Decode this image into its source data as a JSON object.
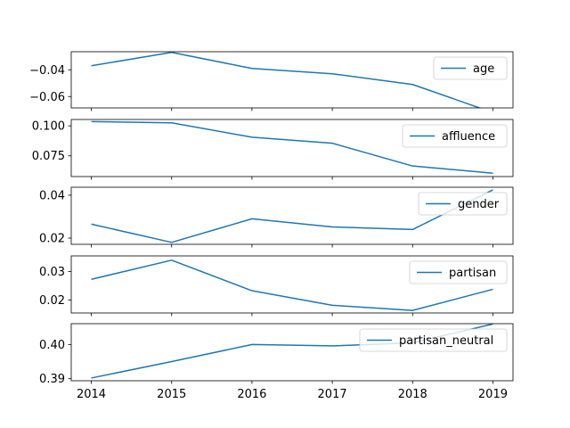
{
  "chart_data": [
    {
      "type": "line",
      "x": [
        2014,
        2015,
        2016,
        2017,
        2018,
        2019
      ],
      "series": [
        {
          "name": "age",
          "values": [
            -0.037,
            -0.027,
            -0.039,
            -0.043,
            -0.051,
            -0.072
          ]
        }
      ],
      "ylim": [
        -0.0685,
        -0.0265
      ],
      "yticks": [
        -0.04,
        -0.06
      ],
      "ytick_labels": [
        "−0.04",
        "−0.06"
      ],
      "legend": "upper right",
      "grid": false
    },
    {
      "type": "line",
      "x": [
        2014,
        2015,
        2016,
        2017,
        2018,
        2019
      ],
      "series": [
        {
          "name": "affluence",
          "values": [
            0.1035,
            0.1025,
            0.0905,
            0.0855,
            0.0665,
            0.0605
          ]
        }
      ],
      "ylim": [
        0.0577,
        0.1053
      ],
      "yticks": [
        0.1,
        0.075
      ],
      "ytick_labels": [
        "0.100",
        "0.075"
      ],
      "legend": "upper right",
      "grid": false
    },
    {
      "type": "line",
      "x": [
        2014,
        2015,
        2016,
        2017,
        2018,
        2019
      ],
      "series": [
        {
          "name": "gender",
          "values": [
            0.0265,
            0.018,
            0.029,
            0.0252,
            0.024,
            0.0425
          ]
        }
      ],
      "ylim": [
        0.0171,
        0.0437
      ],
      "yticks": [
        0.04,
        0.02
      ],
      "ytick_labels": [
        "0.04",
        "0.02"
      ],
      "legend": "upper right",
      "grid": false
    },
    {
      "type": "line",
      "x": [
        2014,
        2015,
        2016,
        2017,
        2018,
        2019
      ],
      "series": [
        {
          "name": "partisan",
          "values": [
            0.0273,
            0.034,
            0.0233,
            0.0182,
            0.0164,
            0.0238
          ]
        }
      ],
      "ylim": [
        0.0155,
        0.0355
      ],
      "yticks": [
        0.03,
        0.02
      ],
      "ytick_labels": [
        "0.03",
        "0.02"
      ],
      "legend": "upper right",
      "grid": false
    },
    {
      "type": "line",
      "x": [
        2014,
        2015,
        2016,
        2017,
        2018,
        2019
      ],
      "series": [
        {
          "name": "partisan_neutral",
          "values": [
            0.3902,
            0.395,
            0.4,
            0.3996,
            0.4005,
            0.406
          ]
        }
      ],
      "ylim": [
        0.3894,
        0.4061
      ],
      "yticks": [
        0.4,
        0.39
      ],
      "ytick_labels": [
        "0.40",
        "0.39"
      ],
      "legend": "upper right",
      "grid": false
    }
  ],
  "x_axis": {
    "ticks": [
      2014,
      2015,
      2016,
      2017,
      2018,
      2019
    ],
    "tick_labels": [
      "2014",
      "2015",
      "2016",
      "2017",
      "2018",
      "2019"
    ]
  }
}
